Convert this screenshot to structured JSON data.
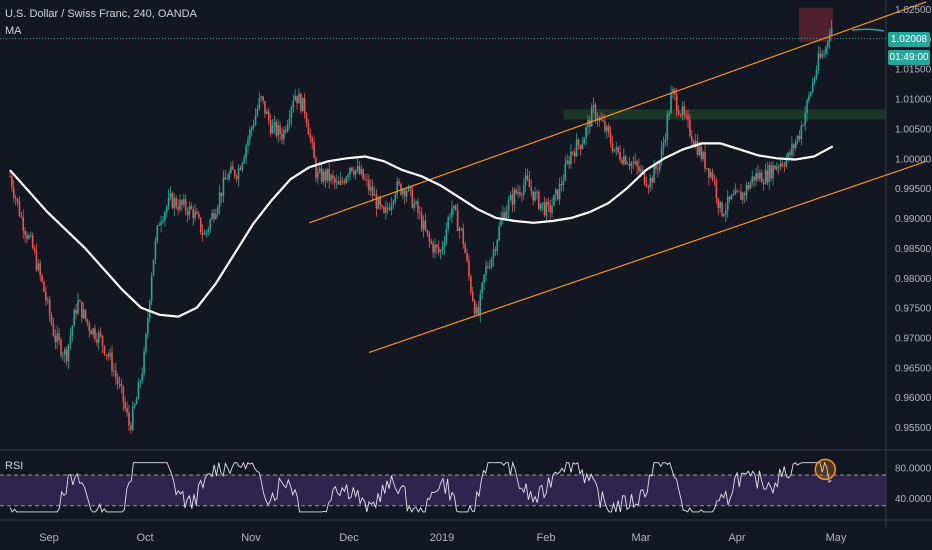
{
  "header": {
    "symbol_title": "U.S. Dollar / Swiss Franc, 240, OANDA",
    "indicator_label": "MA"
  },
  "rsi_panel": {
    "label": "RSI"
  },
  "price_scale": {
    "current_price": "1.02008",
    "countdown": "01:49:00"
  },
  "colors": {
    "background": "#131722",
    "candle_up": "#26a69a",
    "candle_down": "#ef5350",
    "ma_line": "#ffffff",
    "channel": "#f7931a",
    "rsi_line": "#e0e3eb",
    "rsi_band": "#3a2a5c",
    "supply_zone": "#5b2330",
    "demand_zone": "#1d3b2a",
    "current_price_line": "#26a69a"
  },
  "chart_data": [
    {
      "type": "candlestick",
      "title": "U.S. Dollar / Swiss Franc, 240, OANDA",
      "x_ticks": [
        "Sep",
        "Oct",
        "Nov",
        "Dec",
        "2019",
        "Feb",
        "Mar",
        "Apr",
        "May"
      ],
      "y_ticks": [
        "1.02500",
        "1.02000",
        "1.01500",
        "1.01000",
        "1.00500",
        "1.00000",
        "0.99500",
        "0.99000",
        "0.98500",
        "0.98000",
        "0.97500",
        "0.97000",
        "0.96500",
        "0.96000",
        "0.95500"
      ],
      "ylim": [
        0.9515,
        1.0265
      ],
      "xlim": [
        0,
        24.5
      ],
      "current_price": 1.02008,
      "price_path": [
        [
          0,
          0.997
        ],
        [
          0.3,
          0.99
        ],
        [
          0.6,
          0.985
        ],
        [
          0.9,
          0.978
        ],
        [
          1.2,
          0.97
        ],
        [
          1.5,
          0.967
        ],
        [
          1.8,
          0.976
        ],
        [
          2.1,
          0.972
        ],
        [
          2.4,
          0.97
        ],
        [
          2.7,
          0.966
        ],
        [
          3.0,
          0.96
        ],
        [
          3.2,
          0.955
        ],
        [
          3.4,
          0.96
        ],
        [
          3.6,
          0.967
        ],
        [
          3.8,
          0.982
        ],
        [
          4.0,
          0.99
        ],
        [
          4.3,
          0.993
        ],
        [
          4.6,
          0.992
        ],
        [
          4.9,
          0.991
        ],
        [
          5.2,
          0.987
        ],
        [
          5.5,
          0.992
        ],
        [
          5.8,
          0.997
        ],
        [
          6.1,
          0.998
        ],
        [
          6.4,
          1.004
        ],
        [
          6.7,
          1.01
        ],
        [
          7.0,
          1.005
        ],
        [
          7.3,
          1.004
        ],
        [
          7.6,
          1.011
        ],
        [
          7.9,
          1.008
        ],
        [
          8.2,
          0.997
        ],
        [
          8.5,
          0.997
        ],
        [
          8.8,
          0.995
        ],
        [
          9.1,
          0.999
        ],
        [
          9.4,
          0.997
        ],
        [
          9.7,
          0.994
        ],
        [
          10.0,
          0.99
        ],
        [
          10.3,
          0.995
        ],
        [
          10.6,
          0.995
        ],
        [
          10.9,
          0.991
        ],
        [
          11.2,
          0.986
        ],
        [
          11.5,
          0.984
        ],
        [
          11.8,
          0.992
        ],
        [
          12.1,
          0.987
        ],
        [
          12.3,
          0.979
        ],
        [
          12.5,
          0.973
        ],
        [
          12.7,
          0.981
        ],
        [
          12.9,
          0.984
        ],
        [
          13.2,
          0.991
        ],
        [
          13.5,
          0.994
        ],
        [
          13.8,
          0.996
        ],
        [
          14.1,
          0.993
        ],
        [
          14.4,
          0.991
        ],
        [
          14.7,
          0.995
        ],
        [
          15.0,
          1.001
        ],
        [
          15.3,
          1.003
        ],
        [
          15.6,
          1.008
        ],
        [
          15.9,
          1.005
        ],
        [
          16.2,
          1.001
        ],
        [
          16.5,
          1.0
        ],
        [
          16.8,
          0.998
        ],
        [
          17.1,
          0.996
        ],
        [
          17.4,
          1.0
        ],
        [
          17.7,
          1.011
        ],
        [
          18.0,
          1.007
        ],
        [
          18.3,
          1.003
        ],
        [
          18.6,
          0.999
        ],
        [
          18.8,
          0.997
        ],
        [
          19.0,
          0.991
        ],
        [
          19.3,
          0.993
        ],
        [
          19.6,
          0.994
        ],
        [
          19.9,
          0.997
        ],
        [
          20.2,
          0.997
        ],
        [
          20.5,
          0.999
        ],
        [
          20.8,
          1.0
        ],
        [
          21.1,
          1.004
        ],
        [
          21.4,
          1.011
        ],
        [
          21.6,
          1.016
        ],
        [
          21.8,
          1.018
        ],
        [
          21.95,
          1.023
        ],
        [
          22.0,
          1.02
        ]
      ],
      "moving_average": [
        [
          0,
          0.998
        ],
        [
          1,
          0.991
        ],
        [
          2,
          0.985
        ],
        [
          3,
          0.978
        ],
        [
          3.5,
          0.975
        ],
        [
          4.0,
          0.9738
        ],
        [
          4.5,
          0.9735
        ],
        [
          5.0,
          0.975
        ],
        [
          5.5,
          0.979
        ],
        [
          6.0,
          0.984
        ],
        [
          6.5,
          0.989
        ],
        [
          7.0,
          0.993
        ],
        [
          7.5,
          0.9965
        ],
        [
          8.0,
          0.9985
        ],
        [
          8.5,
          0.9995
        ],
        [
          9.0,
          1.0
        ],
        [
          9.5,
          1.0003
        ],
        [
          10.0,
          0.9995
        ],
        [
          10.5,
          0.998
        ],
        [
          11.0,
          0.997
        ],
        [
          11.5,
          0.9955
        ],
        [
          12.0,
          0.9935
        ],
        [
          12.5,
          0.9915
        ],
        [
          13.0,
          0.99
        ],
        [
          13.5,
          0.9895
        ],
        [
          14.0,
          0.9892
        ],
        [
          14.5,
          0.9895
        ],
        [
          15.0,
          0.99
        ],
        [
          15.5,
          0.991
        ],
        [
          16.0,
          0.9925
        ],
        [
          16.5,
          0.995
        ],
        [
          17.0,
          0.998
        ],
        [
          17.5,
          1.0
        ],
        [
          18.0,
          1.0015
        ],
        [
          18.5,
          1.0025
        ],
        [
          19.0,
          1.0025
        ],
        [
          19.5,
          1.0015
        ],
        [
          20.0,
          1.0005
        ],
        [
          20.5,
          1.0
        ],
        [
          21.0,
          0.9998
        ],
        [
          21.5,
          1.0003
        ],
        [
          22.0,
          1.002
        ]
      ],
      "channel_lines": [
        {
          "role": "upper",
          "points": [
            [
              8.0,
              0.9892
            ],
            [
              24.5,
              1.0262
            ]
          ]
        },
        {
          "role": "lower",
          "points": [
            [
              9.6,
              0.9675
            ],
            [
              24.5,
              0.9995
            ]
          ]
        }
      ],
      "zones": [
        {
          "role": "supply",
          "x": [
            21.1,
            22.0
          ],
          "y": [
            1.0195,
            1.0252
          ]
        },
        {
          "role": "demand",
          "x": [
            14.8,
            24.5
          ],
          "y": [
            1.0065,
            1.0082
          ]
        }
      ]
    },
    {
      "type": "line",
      "title": "RSI",
      "y_ticks": [
        "80.0000",
        "40.0000"
      ],
      "ylim": [
        14,
        100
      ],
      "levels": [
        70,
        30
      ],
      "x_ticks": [
        "Sep",
        "Oct",
        "Nov",
        "Dec",
        "2019",
        "Feb",
        "Mar",
        "Apr",
        "May"
      ],
      "highlight_circle_at": [
        21.8,
        80
      ]
    }
  ]
}
